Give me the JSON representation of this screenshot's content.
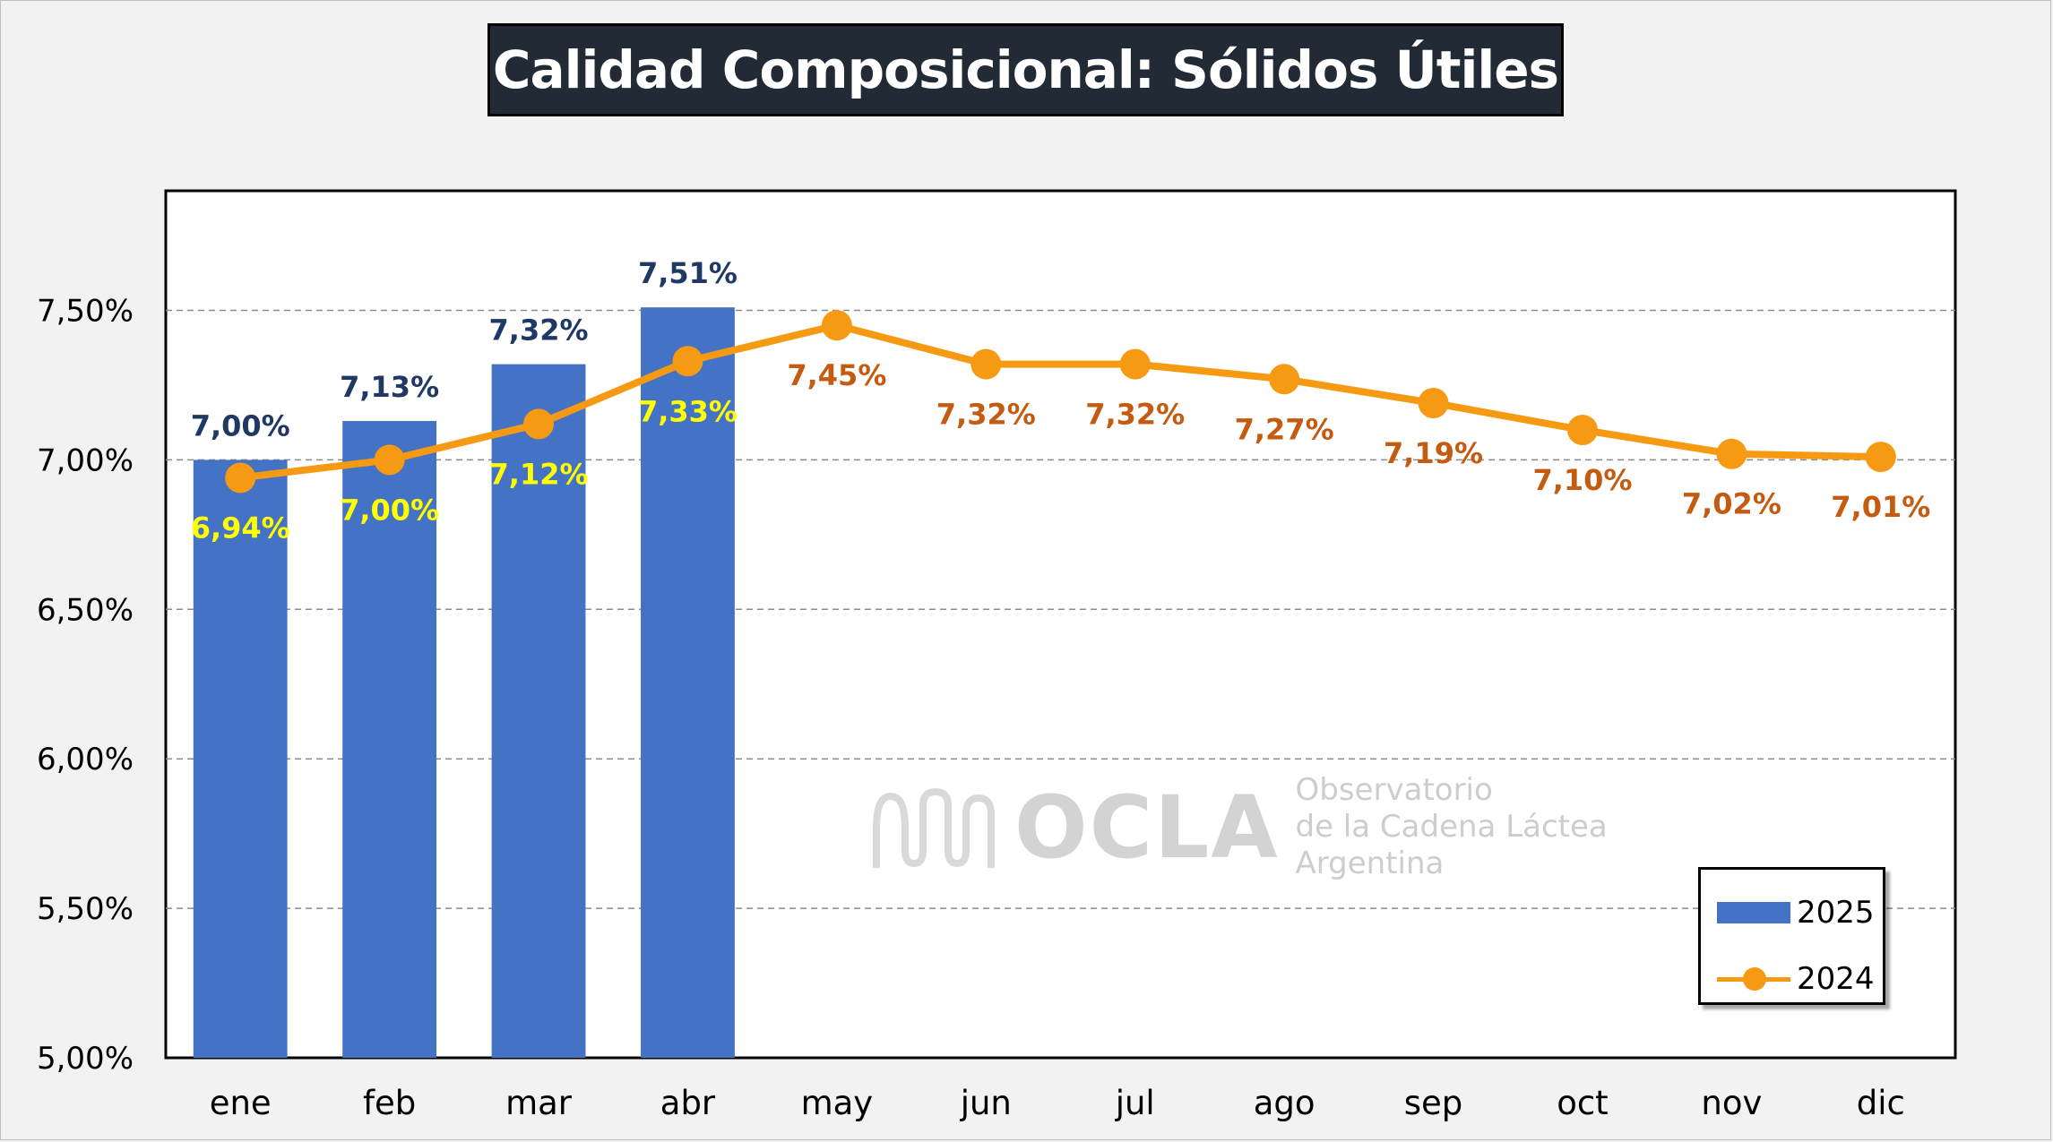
{
  "title": "Calidad Composicional: Sólidos Útiles",
  "watermark": {
    "brand": "OCLA",
    "line1": "Observatorio",
    "line2": "de la Cadena Láctea",
    "line3": "Argentina"
  },
  "colors": {
    "bar": "#4472c4",
    "line": "#f79a13",
    "bar_label": "#1f3864",
    "line_label_early": "#ffff00",
    "line_label_late": "#c55a11"
  },
  "chart_data": {
    "type": "bar+line",
    "title": "Calidad Composicional: Sólidos Útiles",
    "categories": [
      "ene",
      "feb",
      "mar",
      "abr",
      "may",
      "jun",
      "jul",
      "ago",
      "sep",
      "oct",
      "nov",
      "dic"
    ],
    "series": [
      {
        "name": "2025",
        "type": "bar",
        "values": [
          7.0,
          7.13,
          7.32,
          7.51,
          null,
          null,
          null,
          null,
          null,
          null,
          null,
          null
        ],
        "labels": [
          "7,00%",
          "7,13%",
          "7,32%",
          "7,51%"
        ]
      },
      {
        "name": "2024",
        "type": "line",
        "values": [
          6.94,
          7.0,
          7.12,
          7.33,
          7.45,
          7.32,
          7.32,
          7.27,
          7.19,
          7.1,
          7.02,
          7.01
        ],
        "labels": [
          "6,94%",
          "7,00%",
          "7,12%",
          "7,33%",
          "7,45%",
          "7,32%",
          "7,32%",
          "7,27%",
          "7,19%",
          "7,10%",
          "7,02%",
          "7,01%"
        ]
      }
    ],
    "y_ticks": [
      5.0,
      5.5,
      6.0,
      6.5,
      7.0,
      7.5
    ],
    "y_tick_labels": [
      "5,00%",
      "5,50%",
      "6,00%",
      "6,50%",
      "7,00%",
      "7,50%"
    ],
    "ylim": [
      5.0,
      7.9
    ],
    "grid": "horizontal-dashed",
    "legend": "bottom-right"
  }
}
